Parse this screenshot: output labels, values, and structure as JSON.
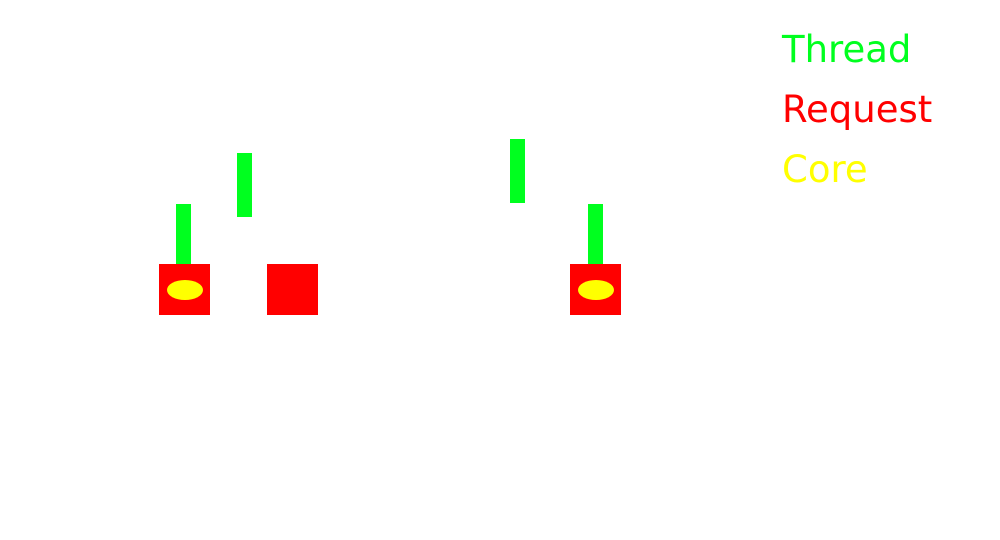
{
  "colors": {
    "thread": "#00ff1f",
    "request": "#ff0000",
    "core": "#ffff00"
  },
  "legend": {
    "thread_label": "Thread",
    "request_label": "Request",
    "core_label": "Core"
  }
}
